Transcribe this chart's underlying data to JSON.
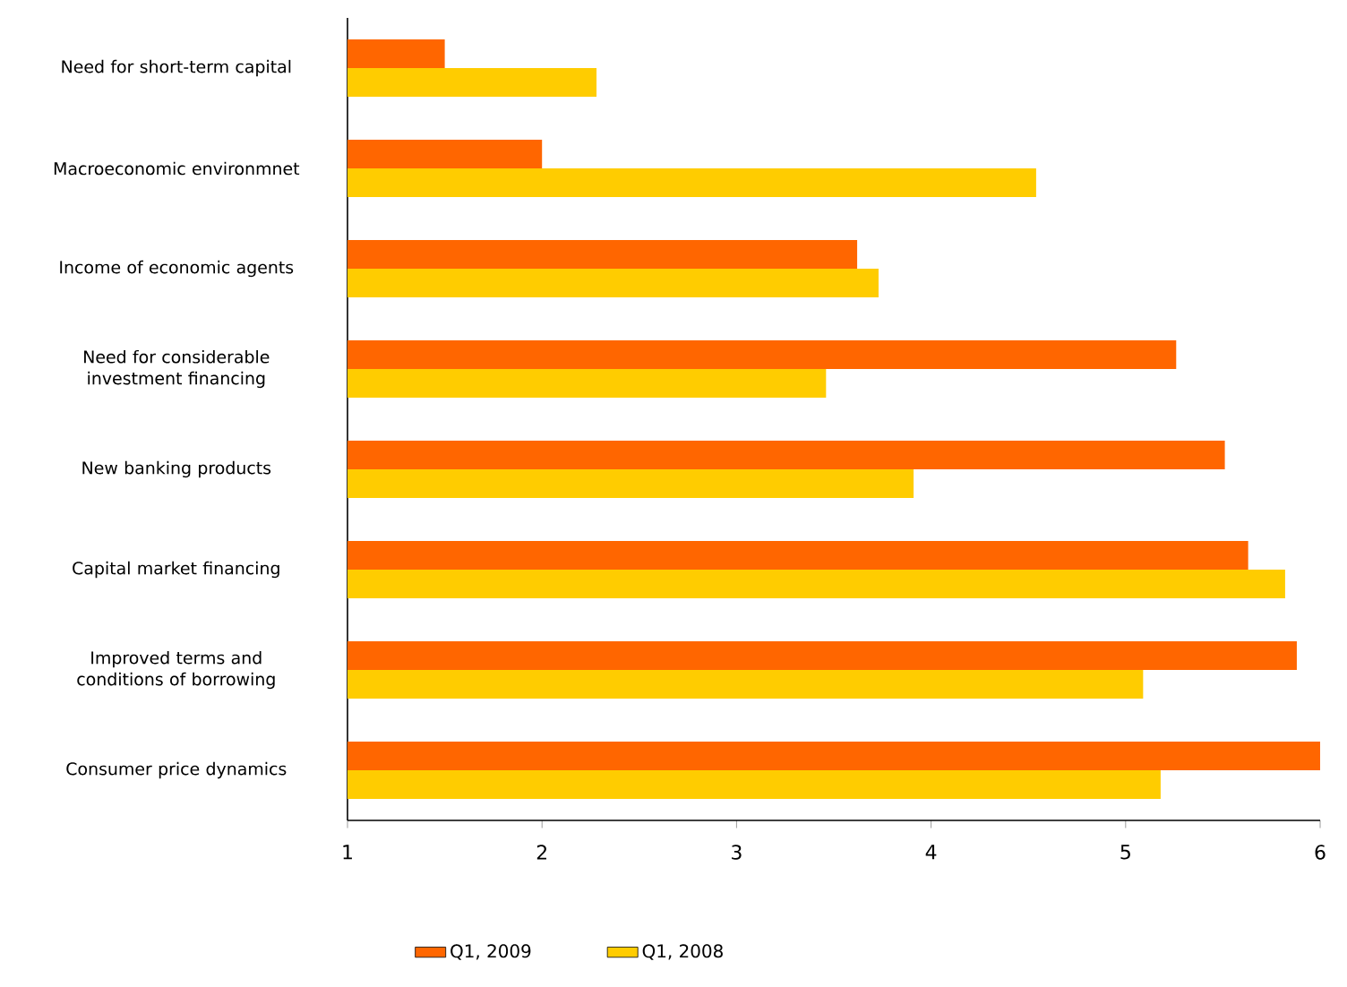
{
  "chart_data": {
    "type": "bar",
    "orientation": "horizontal",
    "categories": [
      "Need for short-term capital",
      "Macroeconomic environmnet",
      "Income of economic agents",
      "Need for considerable investment financing",
      "New banking products",
      "Capital market financing",
      "Improved terms and conditions of borrowing",
      "Consumer price dynamics"
    ],
    "series": [
      {
        "name": "Q1, 2009",
        "color": "#ff6600",
        "values": [
          1.5,
          2.0,
          3.62,
          5.26,
          5.51,
          5.63,
          5.88,
          6.0
        ]
      },
      {
        "name": "Q1, 2008",
        "color": "#ffcc00",
        "values": [
          2.28,
          4.54,
          3.73,
          3.46,
          3.91,
          5.82,
          5.09,
          5.18
        ]
      }
    ],
    "xlim": [
      1,
      6
    ],
    "xticks": [
      1,
      2,
      3,
      4,
      5,
      6
    ],
    "grid": false,
    "legend": "bottom"
  }
}
